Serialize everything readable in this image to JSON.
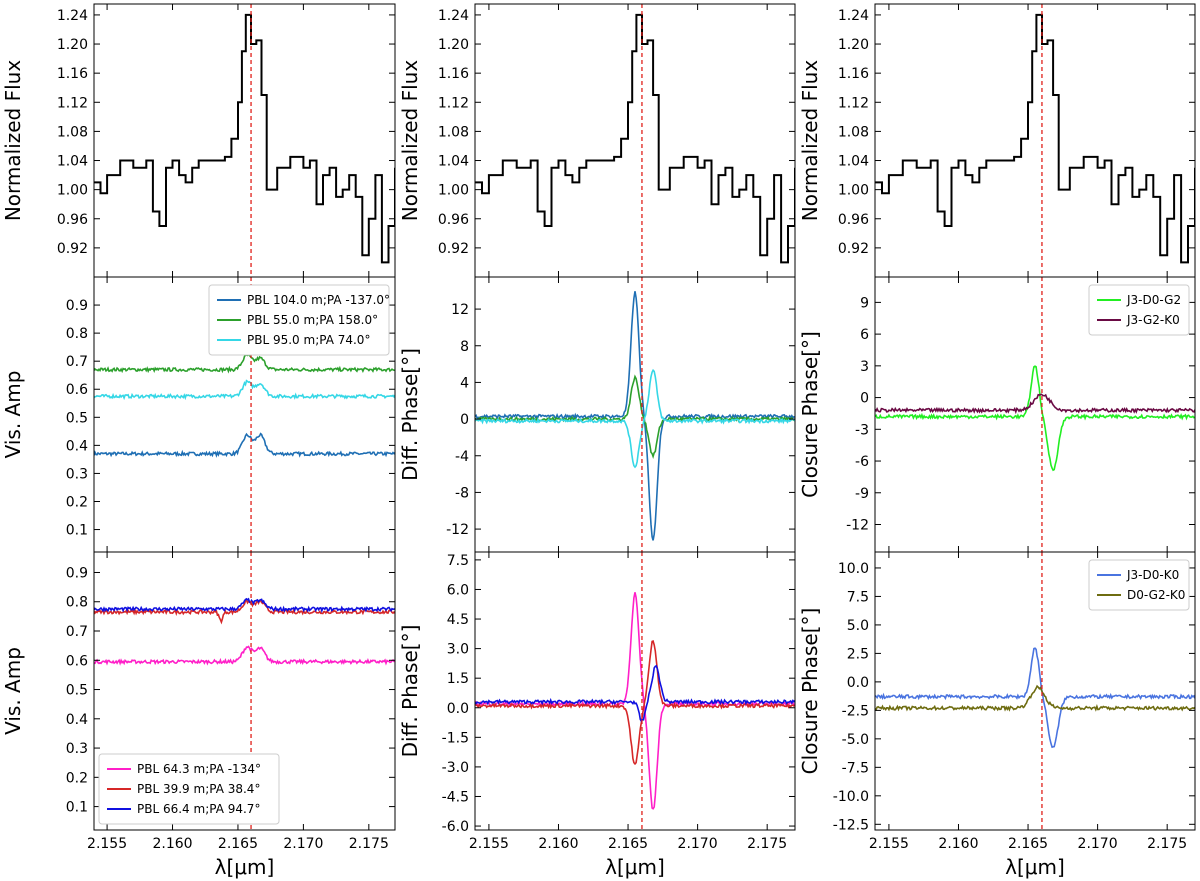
{
  "chart_data": [
    {
      "type": "line",
      "id": "c1-flux",
      "panel": "top-left",
      "ylabel": "Normalized Flux",
      "xlabel": "",
      "xlim": [
        2.154,
        2.177
      ],
      "ylim": [
        0.88,
        1.255
      ],
      "yticks": [
        "0.92",
        "0.96",
        "1.00",
        "1.04",
        "1.08",
        "1.12",
        "1.16",
        "1.20",
        "1.24"
      ],
      "reference_line_x": 2.166,
      "series": [
        {
          "name": "flux",
          "color": "#000000",
          "style": "steps",
          "x": [
            2.154,
            2.1545,
            2.155,
            2.156,
            2.157,
            2.158,
            2.1585,
            2.159,
            2.1595,
            2.16,
            2.1605,
            2.161,
            2.1615,
            2.162,
            2.163,
            2.164,
            2.1645,
            2.165,
            2.1653,
            2.1656,
            2.166,
            2.1664,
            2.1668,
            2.1672,
            2.1676,
            2.168,
            2.169,
            2.17,
            2.1705,
            2.171,
            2.1715,
            2.172,
            2.1725,
            2.173,
            2.1735,
            2.174,
            2.1745,
            2.175,
            2.1755,
            2.176,
            2.1765,
            2.177
          ],
          "y": [
            1.01,
            0.995,
            1.02,
            1.04,
            1.03,
            1.04,
            0.97,
            0.95,
            1.03,
            1.04,
            1.02,
            1.01,
            1.03,
            1.04,
            1.04,
            1.045,
            1.07,
            1.12,
            1.19,
            1.24,
            1.2,
            1.205,
            1.13,
            1.0,
            1.0,
            1.03,
            1.045,
            1.03,
            1.04,
            0.98,
            1.02,
            1.03,
            0.99,
            1.0,
            1.02,
            0.99,
            0.91,
            0.96,
            1.02,
            0.9,
            0.95,
            1.03
          ]
        }
      ]
    },
    {
      "type": "line",
      "id": "c2-flux",
      "panel": "top-middle",
      "ylabel": "Normalized Flux",
      "xlabel": "",
      "xlim": [
        2.154,
        2.177
      ],
      "ylim": [
        0.88,
        1.255
      ],
      "yticks": [
        "0.92",
        "0.96",
        "1.00",
        "1.04",
        "1.08",
        "1.12",
        "1.16",
        "1.20",
        "1.24"
      ],
      "reference_line_x": 2.166,
      "series": [
        {
          "name": "flux",
          "color": "#000000",
          "style": "steps",
          "x": [
            2.154,
            2.1545,
            2.155,
            2.156,
            2.157,
            2.158,
            2.1585,
            2.159,
            2.1595,
            2.16,
            2.1605,
            2.161,
            2.1615,
            2.162,
            2.163,
            2.164,
            2.1645,
            2.165,
            2.1653,
            2.1656,
            2.166,
            2.1664,
            2.1668,
            2.1672,
            2.1676,
            2.168,
            2.169,
            2.17,
            2.1705,
            2.171,
            2.1715,
            2.172,
            2.1725,
            2.173,
            2.1735,
            2.174,
            2.1745,
            2.175,
            2.1755,
            2.176,
            2.1765,
            2.177
          ],
          "y": [
            1.01,
            0.995,
            1.02,
            1.04,
            1.03,
            1.04,
            0.97,
            0.95,
            1.03,
            1.04,
            1.02,
            1.01,
            1.03,
            1.04,
            1.04,
            1.045,
            1.07,
            1.12,
            1.19,
            1.24,
            1.2,
            1.205,
            1.13,
            1.0,
            1.0,
            1.03,
            1.045,
            1.03,
            1.04,
            0.98,
            1.02,
            1.03,
            0.99,
            1.0,
            1.02,
            0.99,
            0.91,
            0.96,
            1.02,
            0.9,
            0.95,
            1.03
          ]
        }
      ]
    },
    {
      "type": "line",
      "id": "c3-flux",
      "panel": "top-right",
      "ylabel": "Normalized Flux",
      "xlabel": "",
      "xlim": [
        2.154,
        2.177
      ],
      "ylim": [
        0.88,
        1.255
      ],
      "yticks": [
        "0.92",
        "0.96",
        "1.00",
        "1.04",
        "1.08",
        "1.12",
        "1.16",
        "1.20",
        "1.24"
      ],
      "reference_line_x": 2.166,
      "series": [
        {
          "name": "flux",
          "color": "#000000",
          "style": "steps",
          "x": [
            2.154,
            2.1545,
            2.155,
            2.156,
            2.157,
            2.158,
            2.1585,
            2.159,
            2.1595,
            2.16,
            2.1605,
            2.161,
            2.1615,
            2.162,
            2.163,
            2.164,
            2.1645,
            2.165,
            2.1653,
            2.1656,
            2.166,
            2.1664,
            2.1668,
            2.1672,
            2.1676,
            2.168,
            2.169,
            2.17,
            2.1705,
            2.171,
            2.1715,
            2.172,
            2.1725,
            2.173,
            2.1735,
            2.174,
            2.1745,
            2.175,
            2.1755,
            2.176,
            2.1765,
            2.177
          ],
          "y": [
            1.01,
            0.995,
            1.02,
            1.04,
            1.03,
            1.04,
            0.97,
            0.95,
            1.03,
            1.04,
            1.02,
            1.01,
            1.03,
            1.04,
            1.04,
            1.045,
            1.07,
            1.12,
            1.19,
            1.24,
            1.2,
            1.205,
            1.13,
            1.0,
            1.0,
            1.03,
            1.045,
            1.03,
            1.04,
            0.98,
            1.02,
            1.03,
            0.99,
            1.0,
            1.02,
            0.99,
            0.91,
            0.96,
            1.02,
            0.9,
            0.95,
            1.03
          ]
        }
      ]
    },
    {
      "type": "line",
      "id": "c1-vis1",
      "panel": "middle-left",
      "ylabel": "Vis. Amp",
      "xlabel": "",
      "xlim": [
        2.154,
        2.177
      ],
      "ylim": [
        0.02,
        1.0
      ],
      "yticks": [
        "0.1",
        "0.2",
        "0.3",
        "0.4",
        "0.5",
        "0.6",
        "0.7",
        "0.8",
        "0.9"
      ],
      "reference_line_x": 2.166,
      "legend": {
        "placement": "top-right"
      },
      "series": [
        {
          "name": "PBL 104.0 m;PA -137.0°",
          "color": "#1f6fb4",
          "base": 0.37,
          "peaks": [
            {
              "x": 2.1657,
              "a": 0.065,
              "w": 0.0005
            },
            {
              "x": 2.1667,
              "a": 0.065,
              "w": 0.0005
            }
          ]
        },
        {
          "name": "PBL 55.0 m;PA 158.0°",
          "color": "#2ca02c",
          "base": 0.67,
          "peaks": [
            {
              "x": 2.1657,
              "a": 0.05,
              "w": 0.0005
            },
            {
              "x": 2.1667,
              "a": 0.04,
              "w": 0.0005
            }
          ]
        },
        {
          "name": "PBL 95.0 m;PA 74.0°",
          "color": "#35d7e6",
          "base": 0.575,
          "peaks": [
            {
              "x": 2.1657,
              "a": 0.05,
              "w": 0.0005
            },
            {
              "x": 2.1667,
              "a": 0.045,
              "w": 0.0005
            }
          ]
        }
      ]
    },
    {
      "type": "line",
      "id": "c1-vis2",
      "panel": "bottom-left",
      "ylabel": "Vis. Amp",
      "xlabel": "λ[μm]",
      "xlim": [
        2.154,
        2.177
      ],
      "ylim": [
        0.02,
        0.97
      ],
      "yticks": [
        "0.1",
        "0.2",
        "0.3",
        "0.4",
        "0.5",
        "0.6",
        "0.7",
        "0.8",
        "0.9"
      ],
      "xticks": [
        "2.155",
        "2.160",
        "2.165",
        "2.170",
        "2.175"
      ],
      "reference_line_x": 2.166,
      "legend": {
        "placement": "bottom-left"
      },
      "series": [
        {
          "name": "PBL 64.3 m;PA -134°",
          "color": "#ff1fc8",
          "base": 0.595,
          "peaks": [
            {
              "x": 2.1657,
              "a": 0.05,
              "w": 0.0005
            },
            {
              "x": 2.1667,
              "a": 0.045,
              "w": 0.0005
            }
          ]
        },
        {
          "name": "PBL 39.9 m;PA 38.4°",
          "color": "#d62728",
          "base": 0.765,
          "peaks": [
            {
              "x": 2.1657,
              "a": 0.035,
              "w": 0.0005
            },
            {
              "x": 2.1667,
              "a": 0.035,
              "w": 0.0005
            },
            {
              "x": 2.1637,
              "a": -0.03,
              "w": 0.0002
            }
          ]
        },
        {
          "name": "PBL 66.4 m;PA 94.7°",
          "color": "#1010e0",
          "base": 0.775,
          "peaks": [
            {
              "x": 2.1657,
              "a": 0.03,
              "w": 0.0005
            },
            {
              "x": 2.1667,
              "a": 0.03,
              "w": 0.0005
            }
          ]
        }
      ]
    },
    {
      "type": "line",
      "id": "c2-dp1",
      "panel": "middle-middle",
      "ylabel": "Diff. Phase[°]",
      "xlabel": "",
      "xlim": [
        2.154,
        2.177
      ],
      "ylim": [
        -14.5,
        15.5
      ],
      "yticks": [
        "-12",
        "-8",
        "-4",
        "0",
        "4",
        "8",
        "12"
      ],
      "reference_line_x": 2.166,
      "series": [
        {
          "name": "series-blue",
          "color": "#1f6fb4",
          "base": 0.3,
          "peaks": [
            {
              "x": 2.1655,
              "a": 13.5,
              "w": 0.0004
            },
            {
              "x": 2.1668,
              "a": -13.5,
              "w": 0.0004
            }
          ]
        },
        {
          "name": "series-green",
          "color": "#2ca02c",
          "base": 0.0,
          "peaks": [
            {
              "x": 2.1655,
              "a": 4.5,
              "w": 0.0004
            },
            {
              "x": 2.1668,
              "a": -4.0,
              "w": 0.0004
            }
          ]
        },
        {
          "name": "series-cyan",
          "color": "#35d7e6",
          "base": -0.2,
          "peaks": [
            {
              "x": 2.1655,
              "a": -5.0,
              "w": 0.0004
            },
            {
              "x": 2.1668,
              "a": 5.5,
              "w": 0.0004
            }
          ]
        }
      ]
    },
    {
      "type": "line",
      "id": "c2-dp2",
      "panel": "bottom-middle",
      "ylabel": "Diff. Phase[°]",
      "xlabel": "λ[μm]",
      "xlim": [
        2.154,
        2.177
      ],
      "ylim": [
        -6.2,
        7.9
      ],
      "yticks": [
        "-6.0",
        "-4.5",
        "-3.0",
        "-1.5",
        "0.0",
        "1.5",
        "3.0",
        "4.5",
        "6.0",
        "7.5"
      ],
      "xticks": [
        "2.155",
        "2.160",
        "2.165",
        "2.170",
        "2.175"
      ],
      "reference_line_x": 2.166,
      "series": [
        {
          "name": "series-magenta",
          "color": "#ff1fc8",
          "base": 0.2,
          "peaks": [
            {
              "x": 2.1655,
              "a": 5.6,
              "w": 0.0004
            },
            {
              "x": 2.1668,
              "a": -5.4,
              "w": 0.0004
            }
          ]
        },
        {
          "name": "series-red",
          "color": "#d62728",
          "base": 0.1,
          "peaks": [
            {
              "x": 2.1655,
              "a": -3.0,
              "w": 0.0004
            },
            {
              "x": 2.1668,
              "a": 3.3,
              "w": 0.0004
            }
          ]
        },
        {
          "name": "series-blue",
          "color": "#1010e0",
          "base": 0.3,
          "peaks": [
            {
              "x": 2.166,
              "a": -1.0,
              "w": 0.0003
            },
            {
              "x": 2.167,
              "a": 1.8,
              "w": 0.0004
            }
          ]
        }
      ]
    },
    {
      "type": "line",
      "id": "c3-cp1",
      "panel": "middle-right",
      "ylabel": "Closure Phase[°]",
      "xlabel": "",
      "xlim": [
        2.154,
        2.177
      ],
      "ylim": [
        -14.6,
        11.4
      ],
      "yticks": [
        "-12",
        "-9",
        "-6",
        "-3",
        "0",
        "3",
        "6",
        "9"
      ],
      "reference_line_x": 2.166,
      "legend": {
        "placement": "top-right"
      },
      "series": [
        {
          "name": "J3-D0-G2",
          "color": "#22ee22",
          "base": -1.8,
          "peaks": [
            {
              "x": 2.1655,
              "a": 4.8,
              "w": 0.0004
            },
            {
              "x": 2.1668,
              "a": -5.0,
              "w": 0.0005
            }
          ]
        },
        {
          "name": "J3-G2-K0",
          "color": "#6a0a44",
          "base": -1.2,
          "peaks": [
            {
              "x": 2.166,
              "a": 1.5,
              "w": 0.0008
            }
          ]
        }
      ]
    },
    {
      "type": "line",
      "id": "c3-cp2",
      "panel": "bottom-right",
      "ylabel": "Closure Phase[°]",
      "xlabel": "λ[μm]",
      "xlim": [
        2.154,
        2.177
      ],
      "ylim": [
        -13.0,
        11.4
      ],
      "yticks": [
        "-12.5",
        "-10.0",
        "-7.5",
        "-5.0",
        "-2.5",
        "0.0",
        "2.5",
        "5.0",
        "7.5",
        "10.0"
      ],
      "xticks": [
        "2.155",
        "2.160",
        "2.165",
        "2.170",
        "2.175"
      ],
      "reference_line_x": 2.166,
      "legend": {
        "placement": "top-right"
      },
      "series": [
        {
          "name": "J3-D0-K0",
          "color": "#4a74e0",
          "base": -1.3,
          "peaks": [
            {
              "x": 2.1655,
              "a": 4.3,
              "w": 0.0004
            },
            {
              "x": 2.1668,
              "a": -4.5,
              "w": 0.0005
            }
          ]
        },
        {
          "name": "D0-G2-K0",
          "color": "#6e6c10",
          "base": -2.3,
          "peaks": [
            {
              "x": 2.1657,
              "a": 1.8,
              "w": 0.0007
            }
          ]
        }
      ]
    }
  ]
}
